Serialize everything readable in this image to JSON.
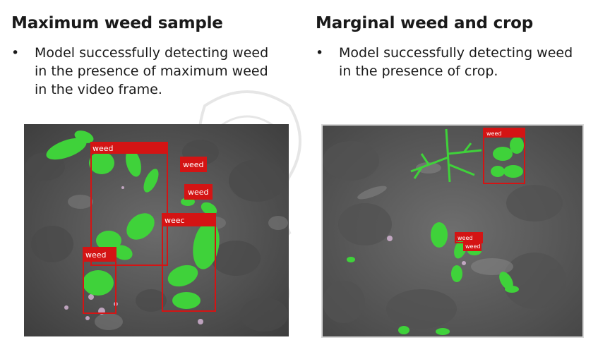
{
  "left": {
    "heading": "Maximum weed sample",
    "bullet": "•",
    "text_line1": "Model successfully detecting weed",
    "text_line2": "in the presence of maximum weed",
    "text_line3": "in the video frame.",
    "labels": [
      "weed",
      "weed",
      "weed",
      "weec",
      "weed"
    ]
  },
  "right": {
    "heading": "Marginal weed and crop",
    "bullet": "•",
    "text_line1": "Model successfully detecting weed",
    "text_line2": "in the presence of crop.",
    "labels": [
      "weed",
      "weed",
      "weed"
    ]
  },
  "colors": {
    "box": "#d41414",
    "soil": "#5a5a5a",
    "plant": "#3fd23a"
  }
}
